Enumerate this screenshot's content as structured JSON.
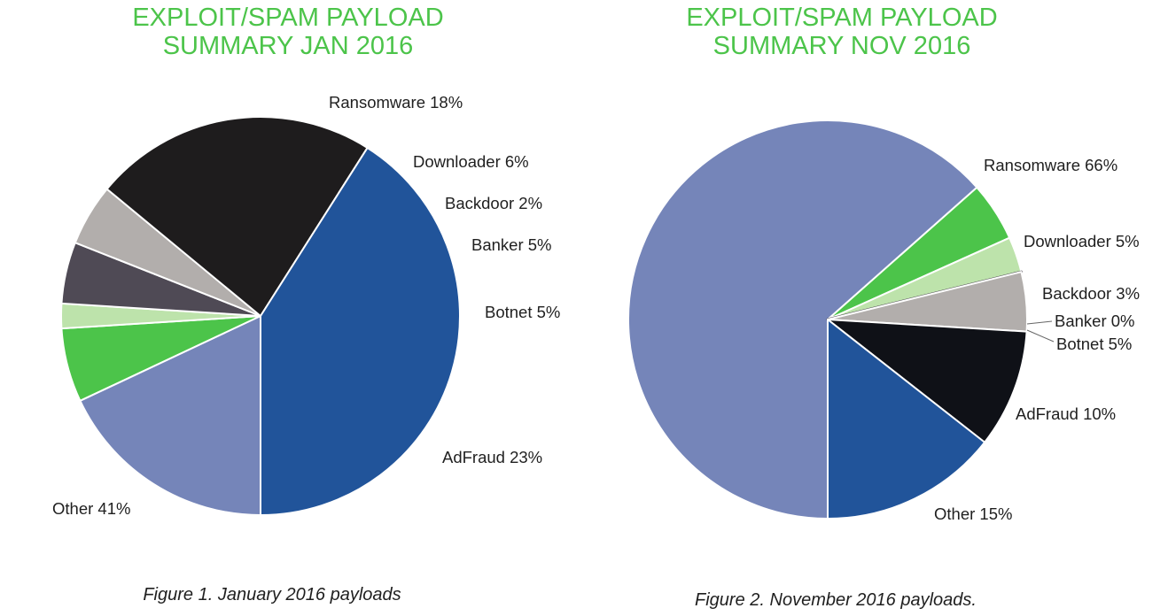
{
  "chart_data": [
    {
      "type": "pie",
      "title_lines": [
        "EXPLOIT/SPAM PAYLOAD",
        "SUMMARY JAN 2016"
      ],
      "caption": "Figure 1. January 2016 payloads",
      "slices": [
        {
          "label": "Ransomware 18%",
          "value": 18,
          "color": "#7585b9"
        },
        {
          "label": "Downloader 6%",
          "value": 6,
          "color": "#4cc44a"
        },
        {
          "label": "Backdoor 2%",
          "value": 2,
          "color": "#bde3ab"
        },
        {
          "label": "Banker 5%",
          "value": 5,
          "color": "#4f4a55"
        },
        {
          "label": "Botnet 5%",
          "value": 5,
          "color": "#b2aeac"
        },
        {
          "label": "AdFraud 23%",
          "value": 23,
          "color": "#1e1c1d"
        },
        {
          "label": "Other 41%",
          "value": 41,
          "color": "#21549a"
        }
      ]
    },
    {
      "type": "pie",
      "title_lines": [
        "EXPLOIT/SPAM PAYLOAD",
        "SUMMARY NOV 2016"
      ],
      "caption": "Figure 2. November 2016 payloads.",
      "slices": [
        {
          "label": "Ransomware 66%",
          "value": 66,
          "color": "#7585b9"
        },
        {
          "label": "Downloader 5%",
          "value": 5,
          "color": "#4cc44a"
        },
        {
          "label": "Backdoor 3%",
          "value": 3,
          "color": "#bde3ab"
        },
        {
          "label": "Banker 0%",
          "value": 0,
          "color": "#4f4a55"
        },
        {
          "label": "Botnet 5%",
          "value": 5,
          "color": "#b2aeac"
        },
        {
          "label": "AdFraud 10%",
          "value": 10,
          "color": "#0f1117"
        },
        {
          "label": "Other 15%",
          "value": 15,
          "color": "#21549a"
        }
      ]
    }
  ]
}
